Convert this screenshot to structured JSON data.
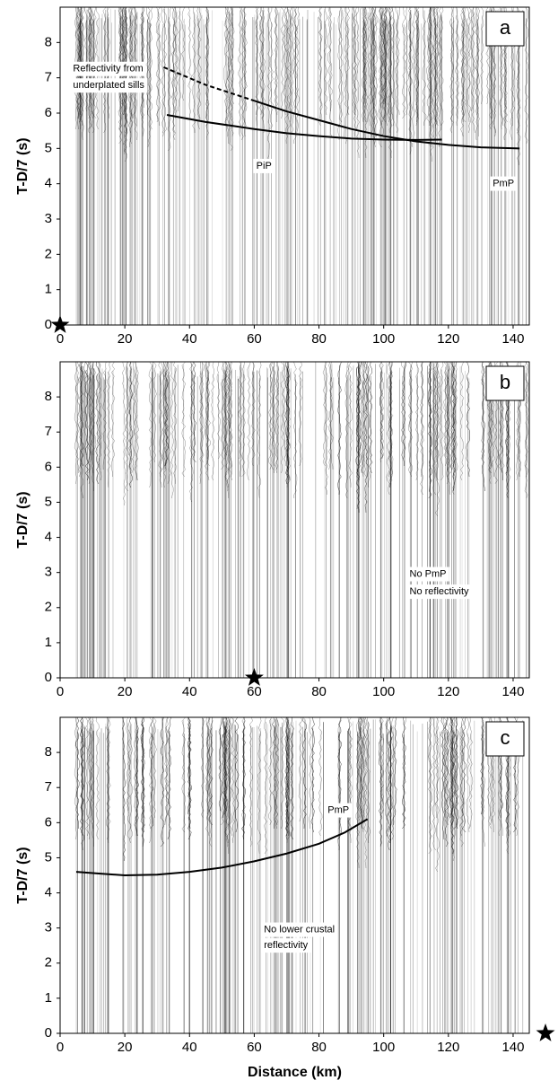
{
  "chart_data": [
    {
      "type": "line",
      "panel_label": "a",
      "ylabel": "T-D/7 (s)",
      "xlim": [
        0,
        145
      ],
      "ylim": [
        0,
        9
      ],
      "xticks": [
        0,
        20,
        40,
        60,
        80,
        100,
        120,
        140
      ],
      "yticks": [
        0,
        1,
        2,
        3,
        4,
        5,
        6,
        7,
        8
      ],
      "series": [
        {
          "x": [
            32,
            45,
            60
          ],
          "values": [
            7.3,
            6.8,
            6.35
          ],
          "color": "#000000",
          "dashed": true
        },
        {
          "x": [
            60,
            70,
            80,
            90,
            100,
            110,
            120,
            130,
            142
          ],
          "values": [
            6.35,
            6.05,
            5.8,
            5.55,
            5.35,
            5.2,
            5.1,
            5.03,
            5.0
          ],
          "color": "#000000",
          "dashed": false
        },
        {
          "x": [
            33,
            45,
            60,
            70,
            80,
            90,
            100,
            110,
            118
          ],
          "values": [
            5.95,
            5.75,
            5.55,
            5.43,
            5.35,
            5.28,
            5.25,
            5.24,
            5.25
          ],
          "color": "#000000",
          "dashed": false
        }
      ],
      "source_x": 0,
      "annotations": [
        "Reflectivity from",
        "underplated sills",
        "PiP",
        "PmP"
      ]
    },
    {
      "type": "line",
      "panel_label": "b",
      "ylabel": "T-D/7 (s)",
      "xlim": [
        0,
        145
      ],
      "ylim": [
        0,
        9
      ],
      "xticks": [
        0,
        20,
        40,
        60,
        80,
        100,
        120,
        140
      ],
      "yticks": [
        0,
        1,
        2,
        3,
        4,
        5,
        6,
        7,
        8
      ],
      "series": [],
      "source_x": 60,
      "annotations": [
        "No PmP",
        "No reflectivity"
      ]
    },
    {
      "type": "line",
      "panel_label": "c",
      "ylabel": "T-D/7 (s)",
      "xlabel": "Distance (km)",
      "xlim": [
        0,
        145
      ],
      "ylim": [
        0,
        9
      ],
      "xticks": [
        0,
        20,
        40,
        60,
        80,
        100,
        120,
        140
      ],
      "yticks": [
        0,
        1,
        2,
        3,
        4,
        5,
        6,
        7,
        8
      ],
      "series": [
        {
          "x": [
            5,
            12,
            20,
            30,
            40,
            50,
            60,
            70,
            80,
            88,
            95
          ],
          "values": [
            4.6,
            4.55,
            4.5,
            4.52,
            4.6,
            4.72,
            4.9,
            5.12,
            5.4,
            5.72,
            6.1
          ],
          "color": "#000000",
          "dashed": false
        }
      ],
      "source_x": 150,
      "annotations": [
        "No lower crustal",
        "reflectivity",
        "PmP"
      ]
    }
  ]
}
